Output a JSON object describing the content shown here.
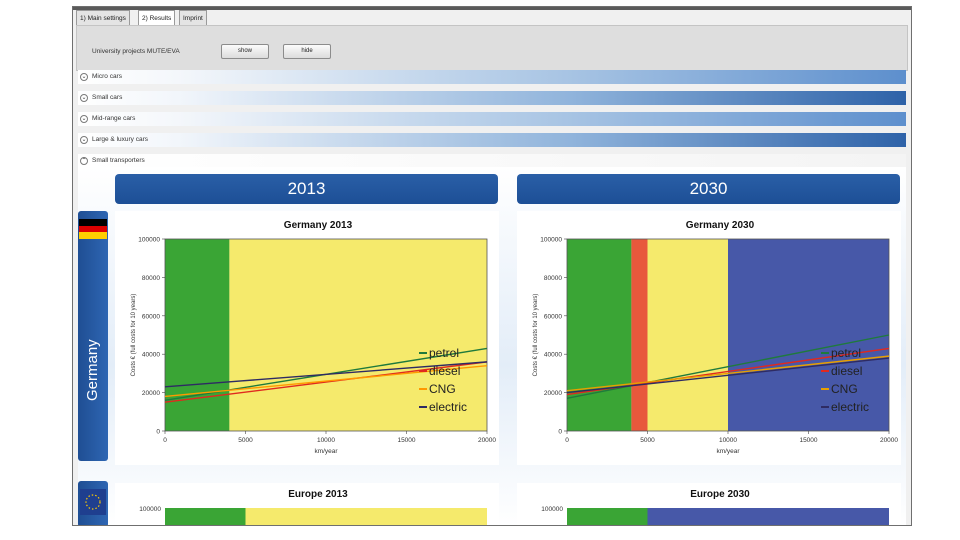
{
  "tabs": [
    "1) Main settings",
    "2) Results",
    "Imprint"
  ],
  "toolbar": {
    "label": "University projects MUTE/EVA",
    "show_label": "show",
    "hide_label": "hide"
  },
  "categories": [
    "Micro cars",
    "Small cars",
    "Mid-range cars",
    "Large & luxury cars",
    "Small transporters"
  ],
  "years": [
    "2013",
    "2030"
  ],
  "countries": [
    "Germany"
  ],
  "chart_data": [
    {
      "type": "line",
      "title": "Germany 2013",
      "xlabel": "km/year",
      "ylabel": "Costs € (full costs for 10 years)",
      "xlim": [
        0,
        20000
      ],
      "ylim": [
        0,
        100000
      ],
      "x_ticks": [
        "0",
        "5000",
        "10000",
        "15000",
        "20000"
      ],
      "y_ticks": [
        "0",
        "20000",
        "40000",
        "60000",
        "80000",
        "100000"
      ],
      "bands": [
        {
          "from": 0,
          "to": 4000,
          "color": "#3aa535"
        },
        {
          "from": 4000,
          "to": 20000,
          "color": "#f5ea6c"
        }
      ],
      "legend_position": "right",
      "series": [
        {
          "name": "petrol",
          "color": "#1f7a3c",
          "x": [
            0,
            20000
          ],
          "y": [
            16000,
            43000
          ]
        },
        {
          "name": "diesel",
          "color": "#e0291f",
          "x": [
            0,
            20000
          ],
          "y": [
            15000,
            36000
          ]
        },
        {
          "name": "CNG",
          "color": "#ff9900",
          "x": [
            0,
            20000
          ],
          "y": [
            18000,
            34000
          ]
        },
        {
          "name": "electric",
          "color": "#2e2b63",
          "x": [
            0,
            20000
          ],
          "y": [
            23000,
            36000
          ]
        }
      ]
    },
    {
      "type": "line",
      "title": "Germany 2030",
      "xlabel": "km/year",
      "ylabel": "Costs € (full costs for 10 years)",
      "xlim": [
        0,
        20000
      ],
      "ylim": [
        0,
        100000
      ],
      "x_ticks": [
        "0",
        "5000",
        "10000",
        "15000",
        "20000"
      ],
      "y_ticks": [
        "0",
        "20000",
        "40000",
        "60000",
        "80000",
        "100000"
      ],
      "bands": [
        {
          "from": 0,
          "to": 4000,
          "color": "#3aa535"
        },
        {
          "from": 4000,
          "to": 5000,
          "color": "#e8583c"
        },
        {
          "from": 5000,
          "to": 10000,
          "color": "#f5ea6c"
        },
        {
          "from": 10000,
          "to": 20000,
          "color": "#4758a8"
        }
      ],
      "legend_position": "right",
      "series": [
        {
          "name": "petrol",
          "color": "#1f7a3c",
          "x": [
            0,
            20000
          ],
          "y": [
            17000,
            50000
          ]
        },
        {
          "name": "diesel",
          "color": "#e0291f",
          "x": [
            0,
            20000
          ],
          "y": [
            19000,
            43000
          ]
        },
        {
          "name": "CNG",
          "color": "#e8a000",
          "x": [
            0,
            20000
          ],
          "y": [
            21000,
            39000
          ]
        },
        {
          "name": "electric",
          "color": "#2e2b63",
          "x": [
            0,
            20000
          ],
          "y": [
            20000,
            38000
          ]
        }
      ]
    },
    {
      "type": "line",
      "title": "Europe 2013",
      "y_ticks": [
        "100000"
      ],
      "bands": [
        {
          "from": 0,
          "to": 5000,
          "color": "#3aa535"
        },
        {
          "from": 5000,
          "to": 20000,
          "color": "#f5ea6c"
        }
      ]
    },
    {
      "type": "line",
      "title": "Europe 2030",
      "y_ticks": [
        "100000"
      ],
      "bands": [
        {
          "from": 0,
          "to": 5000,
          "color": "#3aa535"
        },
        {
          "from": 5000,
          "to": 20000,
          "color": "#4758a8"
        }
      ]
    }
  ]
}
